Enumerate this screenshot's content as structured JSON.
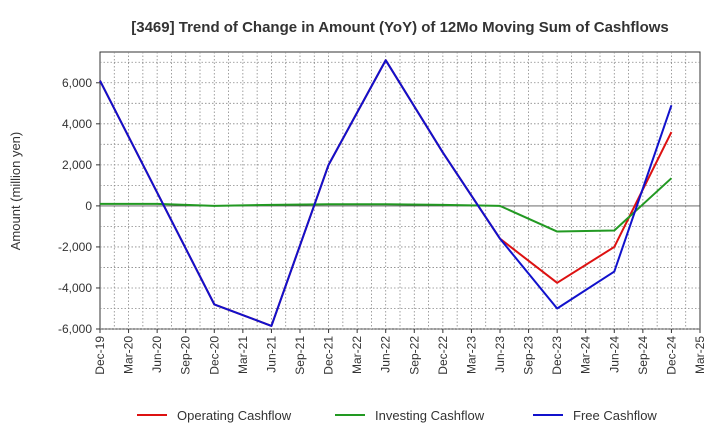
{
  "chart_data": {
    "type": "line",
    "title": "[3469]  Trend of Change in Amount (YoY) of 12Mo Moving Sum of Cashflows",
    "xlabel": "",
    "ylabel": "Amount (million yen)",
    "ylim": [
      -6000,
      7500
    ],
    "yticks": [
      6000,
      4000,
      2000,
      0,
      -2000,
      -4000,
      -6000
    ],
    "ytick_labels": [
      "6,000",
      "4,000",
      "2,000",
      "0",
      "-2,000",
      "-4,000",
      "-6,000"
    ],
    "categories": [
      "Dec-19",
      "Mar-20",
      "Jun-20",
      "Sep-20",
      "Dec-20",
      "Mar-21",
      "Jun-21",
      "Sep-21",
      "Dec-21",
      "Mar-22",
      "Jun-22",
      "Sep-22",
      "Dec-22",
      "Mar-23",
      "Jun-23",
      "Sep-23",
      "Dec-23",
      "Mar-24",
      "Jun-24",
      "Sep-24",
      "Dec-24",
      "Mar-25"
    ],
    "grid": true,
    "legend_position": "bottom",
    "series": [
      {
        "name": "Operating Cashflow",
        "color": "#dd1111",
        "values": [
          6100,
          null,
          null,
          null,
          -4800,
          null,
          -5850,
          null,
          2000,
          null,
          7100,
          null,
          2600,
          null,
          -1600,
          null,
          -3750,
          null,
          -2000,
          null,
          3600,
          null
        ]
      },
      {
        "name": "Investing Cashflow",
        "color": "#229922",
        "values": [
          100,
          null,
          100,
          null,
          0,
          null,
          50,
          null,
          80,
          null,
          80,
          null,
          50,
          null,
          0,
          null,
          -1250,
          null,
          -1200,
          null,
          1350,
          null
        ]
      },
      {
        "name": "Free Cashflow",
        "color": "#1111cc",
        "values": [
          6100,
          null,
          null,
          null,
          -4800,
          null,
          -5850,
          null,
          2000,
          null,
          7100,
          null,
          2600,
          null,
          -1600,
          null,
          -5000,
          null,
          -3200,
          null,
          4900,
          null
        ]
      }
    ]
  }
}
